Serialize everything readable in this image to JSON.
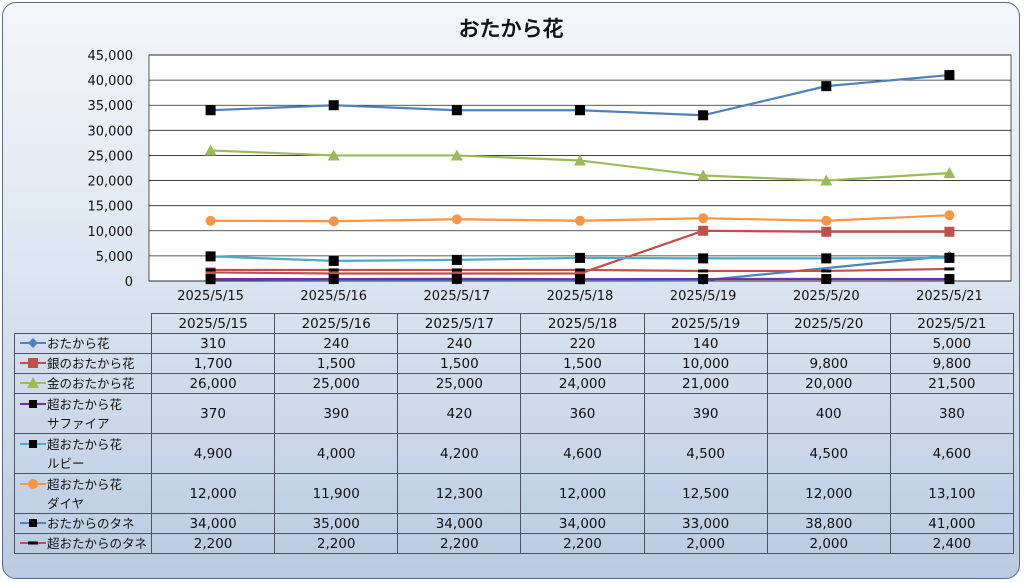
{
  "chart_data": {
    "type": "line",
    "title": "おたから花",
    "categories": [
      "2025/5/15",
      "2025/5/16",
      "2025/5/17",
      "2025/5/18",
      "2025/5/19",
      "2025/5/20",
      "2025/5/21"
    ],
    "ylim": [
      0,
      45000
    ],
    "yticks": [
      "0",
      "5,000",
      "10,000",
      "15,000",
      "20,000",
      "25,000",
      "30,000",
      "35,000",
      "40,000",
      "45,000"
    ],
    "grid": true,
    "legend": "left (data table)",
    "series": [
      {
        "name": "おたから花",
        "color": "#4f81bd",
        "marker": "diamond",
        "values": [
          310,
          240,
          240,
          220,
          140,
          null,
          5000
        ],
        "labels": [
          "310",
          "240",
          "240",
          "220",
          "140",
          "",
          "5,000"
        ]
      },
      {
        "name": "銀のおたから花",
        "color": "#c0504d",
        "marker": "square",
        "values": [
          1700,
          1500,
          1500,
          1500,
          10000,
          9800,
          9800
        ],
        "labels": [
          "1,700",
          "1,500",
          "1,500",
          "1,500",
          "10,000",
          "9,800",
          "9,800"
        ]
      },
      {
        "name": "金のおたから花",
        "color": "#9bbb59",
        "marker": "triangle",
        "values": [
          26000,
          25000,
          25000,
          24000,
          21000,
          20000,
          21500
        ],
        "labels": [
          "26,000",
          "25,000",
          "25,000",
          "24,000",
          "21,000",
          "20,000",
          "21,500"
        ]
      },
      {
        "name": "超おたから花\nサファイア",
        "color": "#7030a0",
        "marker": "blacksquare",
        "values": [
          370,
          390,
          420,
          360,
          390,
          400,
          380
        ],
        "labels": [
          "370",
          "390",
          "420",
          "360",
          "390",
          "400",
          "380"
        ]
      },
      {
        "name": "超おたから花\nルビー",
        "color": "#4bacc6",
        "marker": "blacksquare",
        "values": [
          4900,
          4000,
          4200,
          4600,
          4500,
          4500,
          4600
        ],
        "labels": [
          "4,900",
          "4,000",
          "4,200",
          "4,600",
          "4,500",
          "4,500",
          "4,600"
        ]
      },
      {
        "name": "超おたから花\nダイヤ",
        "color": "#f79646",
        "marker": "circle",
        "values": [
          12000,
          11900,
          12300,
          12000,
          12500,
          12000,
          13100
        ],
        "labels": [
          "12,000",
          "11,900",
          "12,300",
          "12,000",
          "12,500",
          "12,000",
          "13,100"
        ]
      },
      {
        "name": "おたからのタネ",
        "color": "#4f81bd",
        "marker": "blacksquare",
        "values": [
          34000,
          35000,
          34000,
          34000,
          33000,
          38800,
          41000
        ],
        "labels": [
          "34,000",
          "35,000",
          "34,000",
          "34,000",
          "33,000",
          "38,800",
          "41,000"
        ]
      },
      {
        "name": "超おたからのタネ",
        "color": "#c0504d",
        "marker": "dash",
        "values": [
          2200,
          2200,
          2200,
          2200,
          2000,
          2000,
          2400
        ],
        "labels": [
          "2,200",
          "2,200",
          "2,200",
          "2,200",
          "2,000",
          "2,000",
          "2,400"
        ]
      }
    ]
  }
}
